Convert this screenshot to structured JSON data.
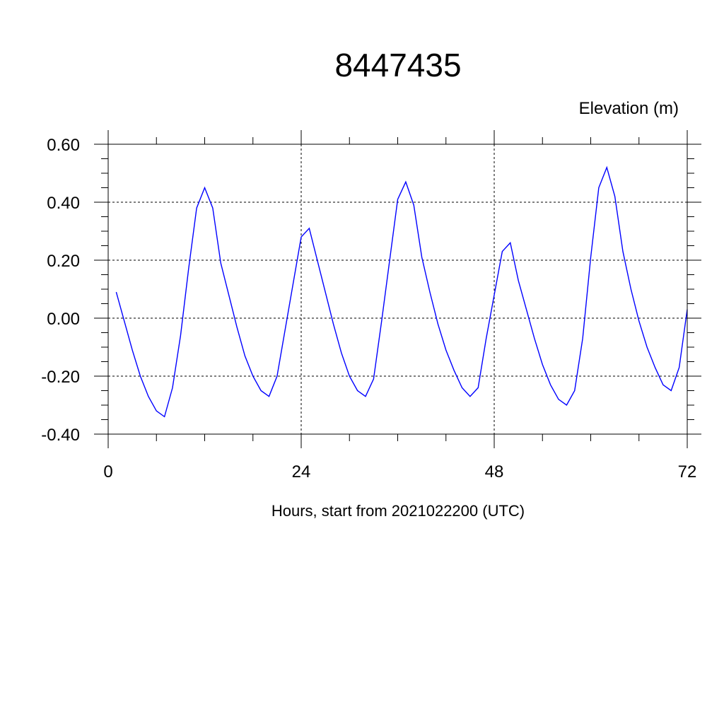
{
  "chart_data": {
    "type": "line",
    "title": "8447435",
    "ylabel": "Elevation (m)",
    "xlabel": "Hours, start from 2021022200 (UTC)",
    "xlim": [
      0,
      72
    ],
    "ylim": [
      -0.4,
      0.6
    ],
    "x_ticks": [
      0,
      24,
      48,
      72
    ],
    "x_tick_labels": [
      "0",
      "24",
      "48",
      "72"
    ],
    "y_ticks": [
      -0.4,
      -0.2,
      0.0,
      0.2,
      0.4,
      0.6
    ],
    "y_tick_labels": [
      "-0.40",
      "-0.20",
      "0.00",
      "0.20",
      "0.40",
      "0.60"
    ],
    "grid": true,
    "series": [
      {
        "color": "#0000ff",
        "x": [
          1,
          2,
          3,
          4,
          5,
          6,
          7,
          8,
          9,
          10,
          11,
          12,
          13,
          14,
          15,
          16,
          17,
          18,
          19,
          20,
          21,
          22,
          23,
          24,
          25,
          26,
          27,
          28,
          29,
          30,
          31,
          32,
          33,
          34,
          35,
          36,
          37,
          38,
          39,
          40,
          41,
          42,
          43,
          44,
          45,
          46,
          47,
          48,
          49,
          50,
          51,
          52,
          53,
          54,
          55,
          56,
          57,
          58,
          59,
          60,
          61,
          62,
          63,
          64,
          65,
          66,
          67,
          68,
          69,
          70,
          71,
          72
        ],
        "values": [
          0.09,
          -0.01,
          -0.11,
          -0.2,
          -0.27,
          -0.32,
          -0.34,
          -0.24,
          -0.06,
          0.17,
          0.38,
          0.45,
          0.38,
          0.19,
          0.08,
          -0.03,
          -0.13,
          -0.2,
          -0.25,
          -0.27,
          -0.2,
          -0.04,
          0.12,
          0.28,
          0.31,
          0.2,
          0.09,
          -0.02,
          -0.12,
          -0.2,
          -0.25,
          -0.27,
          -0.21,
          -0.01,
          0.2,
          0.41,
          0.47,
          0.39,
          0.21,
          0.09,
          -0.02,
          -0.11,
          -0.18,
          -0.24,
          -0.27,
          -0.24,
          -0.07,
          0.08,
          0.23,
          0.26,
          0.13,
          0.03,
          -0.07,
          -0.16,
          -0.23,
          -0.28,
          -0.3,
          -0.25,
          -0.07,
          0.21,
          0.45,
          0.52,
          0.42,
          0.23,
          0.1,
          -0.01,
          -0.1,
          -0.17,
          -0.23,
          -0.25,
          -0.17,
          0.03
        ]
      }
    ]
  }
}
